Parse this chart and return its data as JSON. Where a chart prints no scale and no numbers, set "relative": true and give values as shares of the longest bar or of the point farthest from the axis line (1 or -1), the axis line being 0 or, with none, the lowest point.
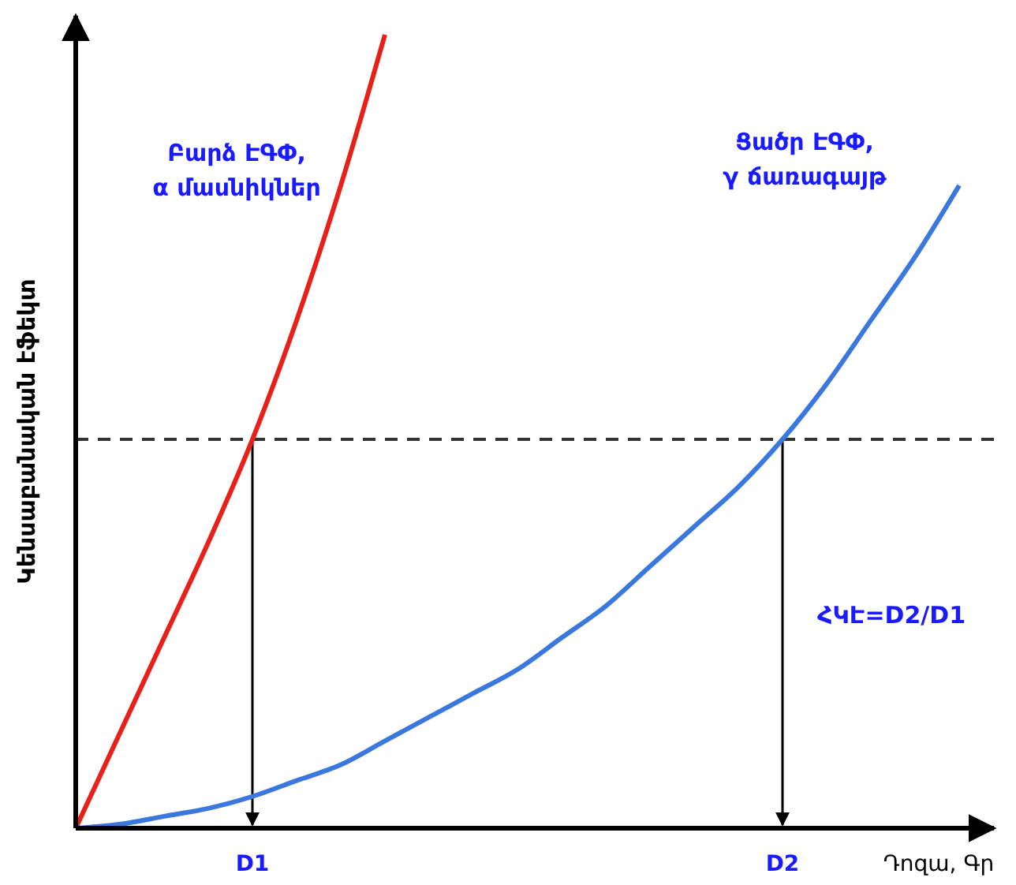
{
  "chart_data": {
    "type": "line",
    "relative": true,
    "xlabel": "Դոզա, Գր",
    "ylabel": "Կենսաբանական էֆեկտ",
    "categories": [
      null,
      null,
      null,
      null,
      "D1",
      null,
      null,
      null,
      null,
      null,
      null,
      null,
      null,
      null,
      null,
      null,
      "D2",
      null,
      null,
      null,
      null
    ],
    "series": [
      {
        "name": "Բարձ ԷԳՓ, α մասնիկներ",
        "color": "#e8201a",
        "values": [
          0,
          0.12,
          0.24,
          0.36,
          0.49,
          0.64,
          0.81,
          1,
          null,
          null,
          null,
          null,
          null,
          null,
          null,
          null,
          null,
          null,
          null,
          null,
          null
        ]
      },
      {
        "name": "Ցածր ԷԳՓ, γ ճառագայթ",
        "color": "#3a78e0",
        "values": [
          0,
          0.005,
          0.015,
          0.025,
          0.04,
          0.06,
          0.08,
          0.11,
          0.14,
          0.17,
          0.2,
          0.24,
          0.28,
          0.33,
          0.38,
          0.43,
          0.49,
          0.56,
          0.64,
          0.72,
          0.81
        ]
      }
    ],
    "ref_lines": [
      {
        "axis": "y",
        "value": 0.49,
        "color": "#333333",
        "line_style": "dashed"
      }
    ],
    "annotations": [
      "ՀԿԷ=D2/D1"
    ],
    "tick_labels": "x",
    "line_style": "solid"
  }
}
